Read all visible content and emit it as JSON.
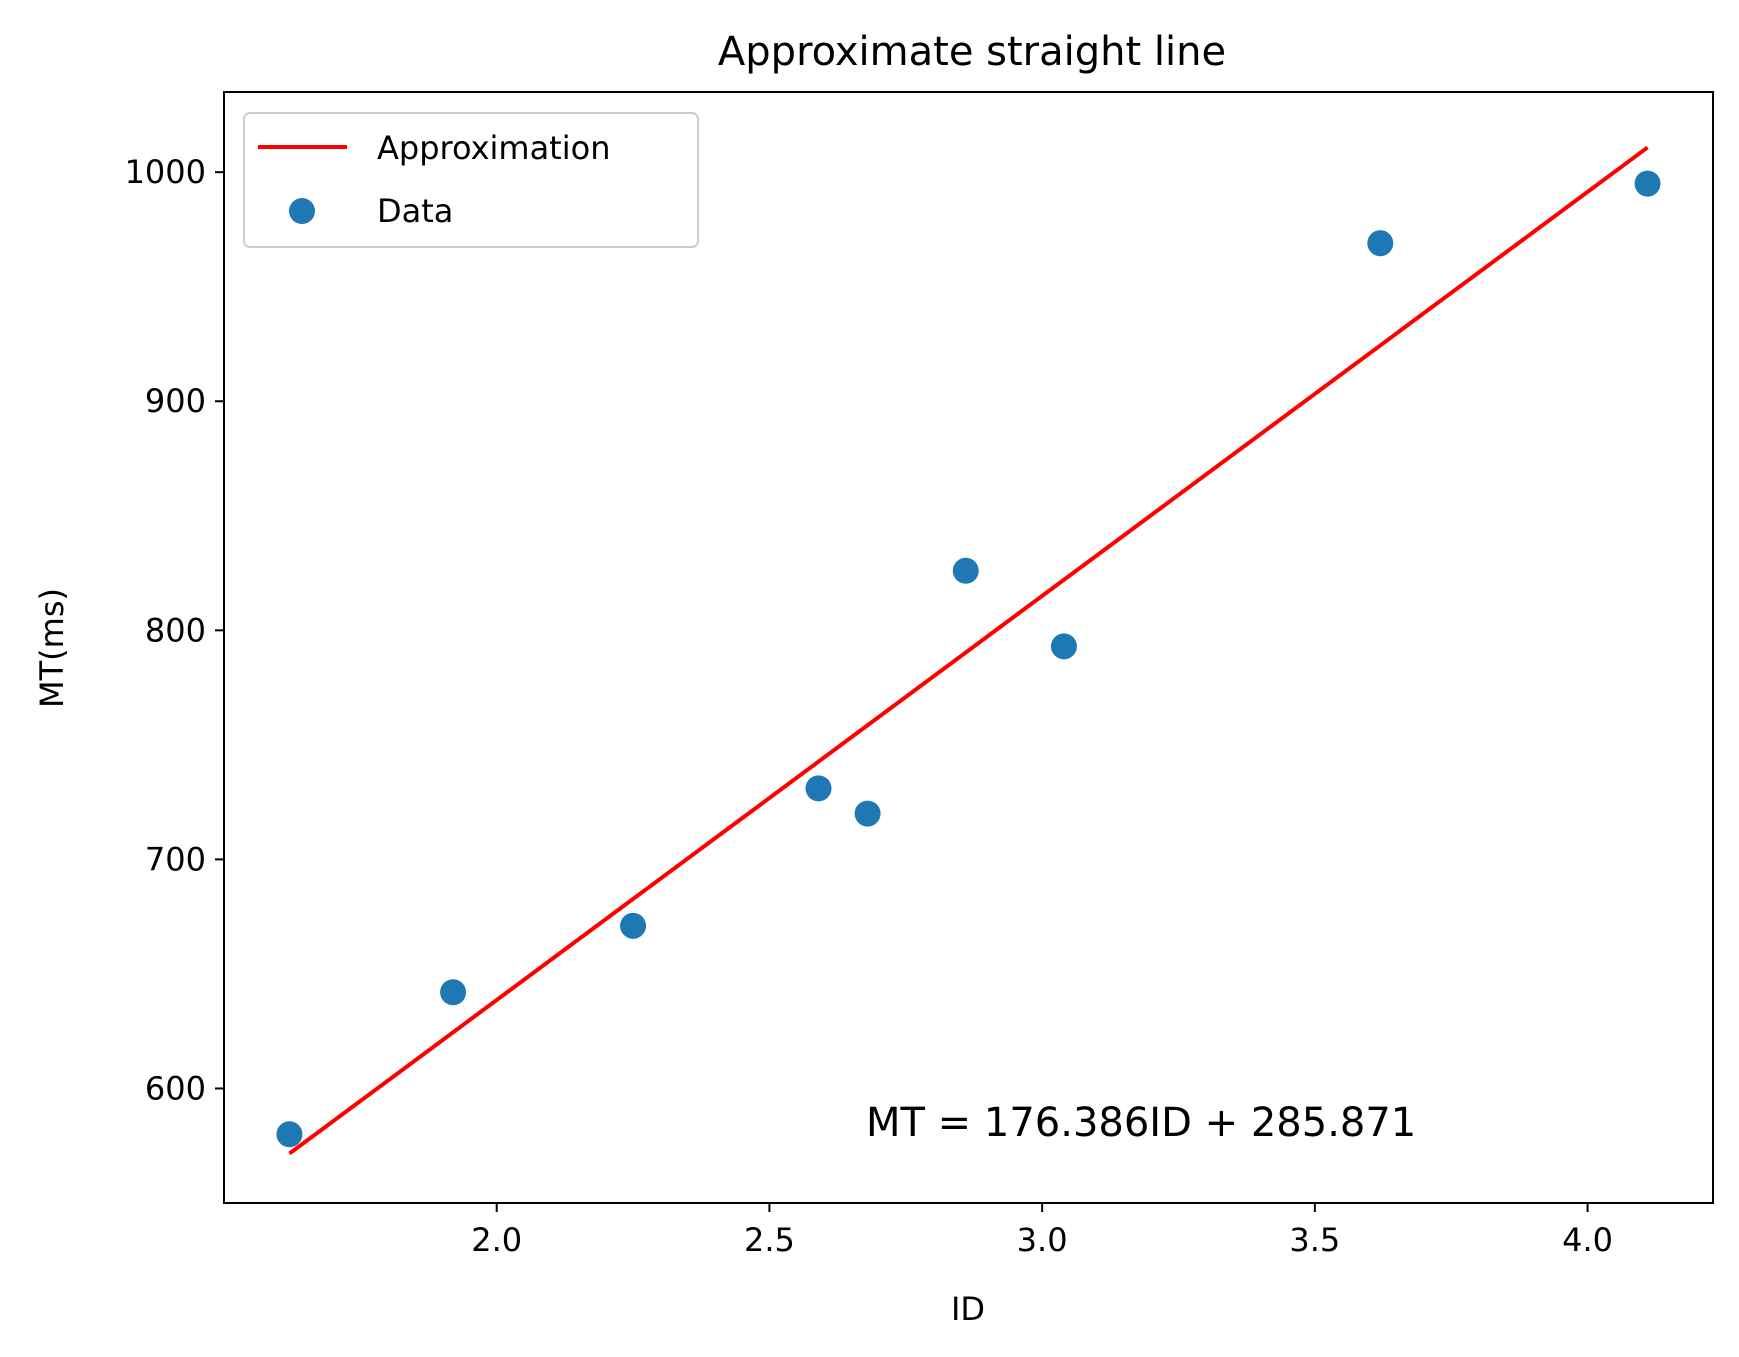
{
  "chart_data": {
    "type": "scatter",
    "title": "Approximate straight line",
    "xlabel": "ID",
    "ylabel": "MT(ms)",
    "xlim": [
      1.5,
      4.23
    ],
    "ylim": [
      550,
      1035
    ],
    "xticks": [
      2.0,
      2.5,
      3.0,
      3.5,
      4.0
    ],
    "xtick_labels": [
      "2.0",
      "2.5",
      "3.0",
      "3.5",
      "4.0"
    ],
    "yticks": [
      600,
      700,
      800,
      900,
      1000
    ],
    "ytick_labels": [
      "600",
      "700",
      "800",
      "900",
      "1000"
    ],
    "grid": false,
    "legend_position": "top-left",
    "series": [
      {
        "name": "Approximation",
        "kind": "line",
        "color": "#ff0000",
        "x": [
          1.62,
          4.11
        ],
        "y": [
          571.6,
          1010.8
        ]
      },
      {
        "name": "Data",
        "kind": "scatter",
        "color": "#1f77b4",
        "x": [
          1.62,
          1.92,
          2.25,
          2.59,
          2.68,
          2.86,
          3.04,
          3.62,
          4.11
        ],
        "y": [
          580,
          642,
          671,
          731,
          720,
          826,
          793,
          969,
          995
        ]
      }
    ],
    "annotation": "MT = 176.386ID + 285.871"
  }
}
